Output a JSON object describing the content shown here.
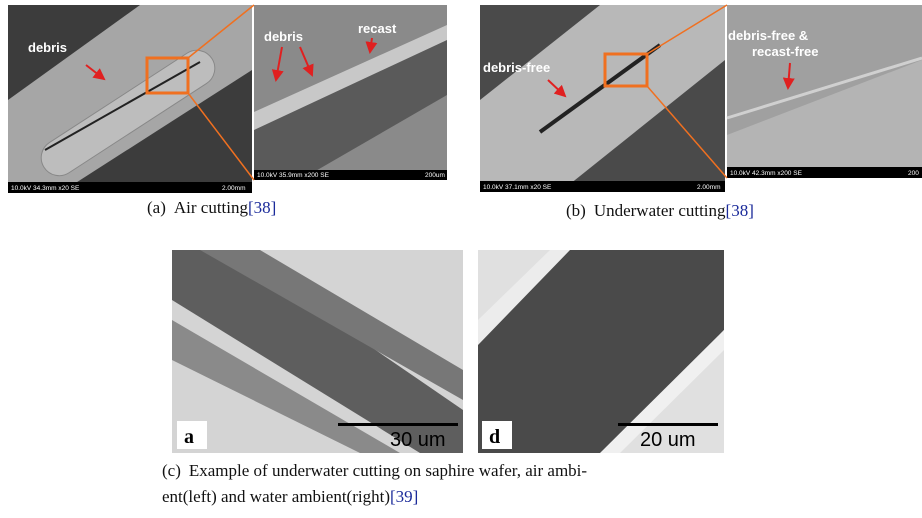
{
  "figures": [
    {
      "caption": {
        "label": "(a)",
        "text": "Air cutting",
        "cite": "[38]"
      },
      "images": [
        {
          "annotations": [
            "debris"
          ],
          "info": "10.0kV 34.3mm x20 SE",
          "scale": "2.00mm"
        },
        {
          "annotations": [
            "debris",
            "recast"
          ],
          "info": "10.0kV 35.9mm x200 SE",
          "scale": "200um"
        }
      ]
    },
    {
      "caption": {
        "label": "(b)",
        "text": "Underwater cutting",
        "cite": "[38]"
      },
      "images": [
        {
          "annotations": [
            "debris-free"
          ],
          "info": "10.0kV 37.1mm x20 SE",
          "scale": "2.00mm"
        },
        {
          "annotations": [
            "debris-free &",
            "recast-free"
          ],
          "info": "10.0kV 42.3mm x200 SE",
          "scale": "200"
        }
      ]
    },
    {
      "caption": {
        "label": "(c)",
        "lines": [
          "Example of underwater cutting on saphire wafer, air ambi-",
          "ent(left) and water ambient(right)"
        ],
        "cite": "[39]"
      },
      "images": [
        {
          "panel": "a",
          "scale": "30 um"
        },
        {
          "panel": "d",
          "scale": "20 um"
        }
      ]
    }
  ]
}
